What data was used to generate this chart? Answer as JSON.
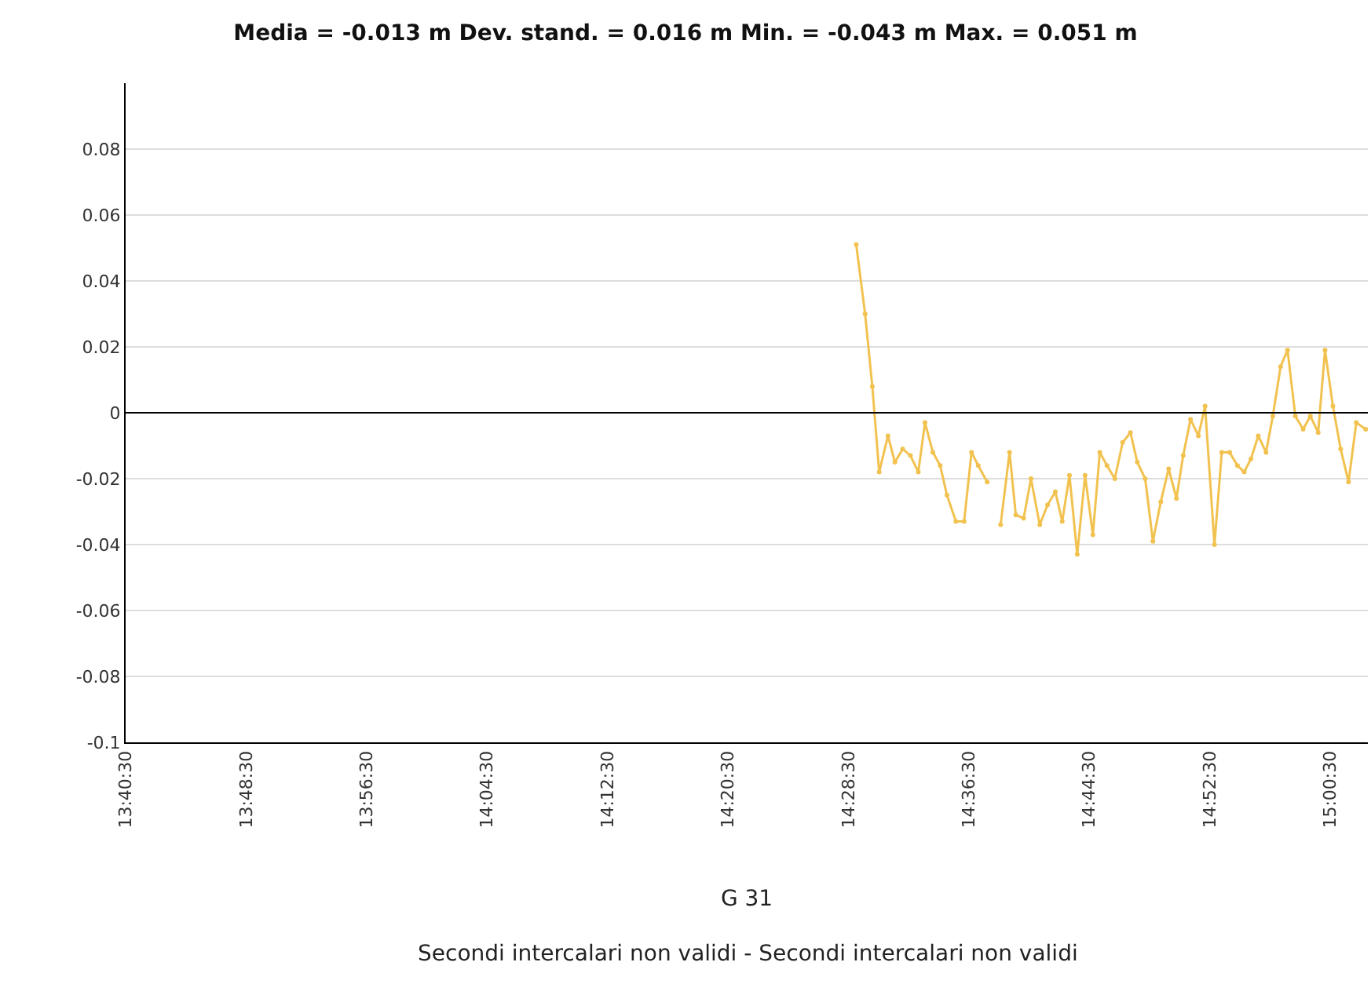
{
  "chart_data": {
    "type": "line",
    "title": "Media = -0.013 m Dev. stand. = 0.016 m Min. = -0.043 m Max. = 0.051 m",
    "xlabel": "G 31",
    "annotations": [
      "Secondi intercalari non validi - Secondi intercalari non validi"
    ],
    "x": [
      14.4837,
      14.4935,
      14.5015,
      14.5091,
      14.5188,
      14.5265,
      14.5351,
      14.5437,
      14.5524,
      14.5598,
      14.5685,
      14.5766,
      14.5841,
      14.594,
      14.6031,
      14.6113,
      14.6187,
      14.6286,
      14.636,
      14.6435,
      14.6534,
      14.6603,
      14.669,
      14.6771,
      14.6868,
      14.6954,
      14.7041,
      14.7117,
      14.7197,
      14.7283,
      14.737,
      14.7456,
      14.7533,
      14.7612,
      14.7699,
      14.7786,
      14.7872,
      14.7948,
      14.8035,
      14.8121,
      14.8208,
      14.8295,
      14.8381,
      14.8456,
      14.8537,
      14.8624,
      14.8698,
      14.8802,
      14.8883,
      14.897,
      14.9056,
      14.9131,
      14.9206,
      14.9287,
      14.9373,
      14.9448,
      14.9534,
      14.9611,
      14.9697,
      14.9784,
      14.9863,
      14.995,
      15.0026,
      15.0113,
      15.0199,
      15.0286,
      15.0372,
      15.0476
    ],
    "series": [
      {
        "color": "#f2c250",
        "values": [
          0.051,
          0.03,
          0.008,
          -0.018,
          -0.007,
          -0.015,
          -0.011,
          -0.013,
          -0.018,
          -0.003,
          -0.012,
          -0.016,
          -0.025,
          -0.033,
          -0.033,
          -0.012,
          -0.016,
          -0.021,
          null,
          -0.034,
          -0.012,
          -0.031,
          -0.032,
          -0.02,
          -0.034,
          -0.028,
          -0.024,
          -0.033,
          -0.019,
          -0.043,
          -0.019,
          -0.037,
          -0.012,
          -0.016,
          -0.02,
          -0.009,
          -0.006,
          -0.015,
          -0.02,
          -0.039,
          -0.027,
          -0.017,
          -0.026,
          -0.013,
          -0.002,
          -0.007,
          0.002,
          -0.04,
          -0.012,
          -0.012,
          -0.016,
          -0.018,
          -0.014,
          -0.007,
          -0.012,
          -0.001,
          0.014,
          0.019,
          -0.001,
          -0.005,
          -0.001,
          -0.006,
          0.019,
          0.002,
          -0.011,
          -0.021,
          -0.003,
          -0.005
        ]
      }
    ],
    "xlim": [
      13.675,
      15.05
    ],
    "xticks": [
      {
        "value": 13.675,
        "label": "13:40:30"
      },
      {
        "value": 13.80833,
        "label": "13:48:30"
      },
      {
        "value": 13.94167,
        "label": "13:56:30"
      },
      {
        "value": 14.075,
        "label": "14:04:30"
      },
      {
        "value": 14.20833,
        "label": "14:12:30"
      },
      {
        "value": 14.34167,
        "label": "14:20:30"
      },
      {
        "value": 14.475,
        "label": "14:28:30"
      },
      {
        "value": 14.60833,
        "label": "14:36:30"
      },
      {
        "value": 14.74167,
        "label": "14:44:30"
      },
      {
        "value": 14.875,
        "label": "14:52:30"
      },
      {
        "value": 15.00833,
        "label": "15:00:30"
      }
    ],
    "ylim": [
      -0.1,
      0.1
    ],
    "yticks": [
      -0.1,
      -0.08,
      -0.06,
      -0.04,
      -0.02,
      0,
      0.02,
      0.04,
      0.06,
      0.08
    ],
    "ref_lines": [
      {
        "axis": "y",
        "value": 0,
        "color": "#000000"
      }
    ],
    "grid": "y",
    "marker": "circle",
    "line_style": "solid"
  }
}
